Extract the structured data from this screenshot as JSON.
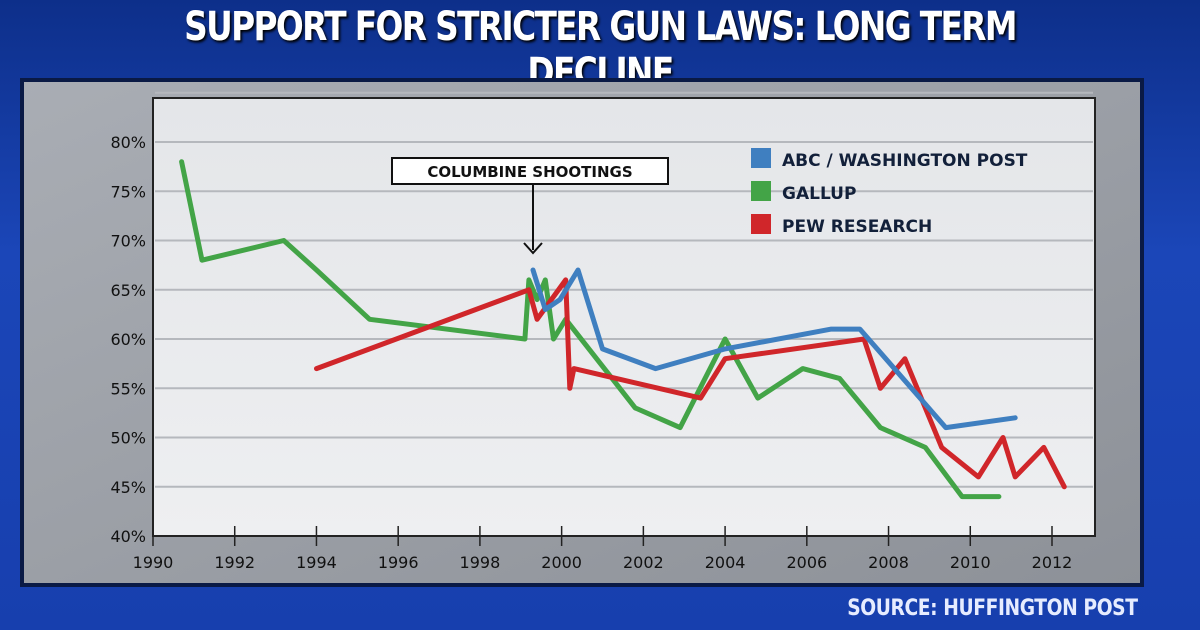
{
  "header": {
    "title": "SUPPORT FOR STRICTER GUN LAWS: LONG TERM DECLINE"
  },
  "footer": {
    "source": "SOURCE: HUFFINGTON POST"
  },
  "chart_data": {
    "type": "line",
    "title": "SUPPORT FOR STRICTER GUN LAWS: LONG TERM DECLINE",
    "xlabel": "",
    "ylabel": "",
    "xlim": [
      1990,
      2012.8
    ],
    "ylim": [
      40,
      80
    ],
    "x_ticks": [
      "1990",
      "1992",
      "1994",
      "1996",
      "1998",
      "2000",
      "2002",
      "2004",
      "2006",
      "2008",
      "2010",
      "2012"
    ],
    "y_ticks": [
      "40%",
      "45%",
      "50%",
      "55%",
      "60%",
      "65%",
      "70%",
      "75%",
      "80%"
    ],
    "grid": true,
    "legend_position": "top-right",
    "annotation": {
      "text": "COLUMBINE SHOOTINGS",
      "x": 1999.3
    },
    "series": [
      {
        "name": "ABC / WASHINGTON POST",
        "color": "#3f7fc0",
        "x": [
          1999.3,
          1999.6,
          1999.96,
          2000.4,
          2001.0,
          2002.3,
          2004.0,
          2006.6,
          2007.3,
          2009.4,
          2011.1
        ],
        "y": [
          67,
          63,
          64,
          67,
          59,
          57,
          59,
          61,
          61,
          51,
          52
        ]
      },
      {
        "name": "GALLUP",
        "color": "#43a447",
        "x": [
          1990.7,
          1991.2,
          1993.2,
          1994.0,
          1995.3,
          1999.1,
          1999.2,
          1999.4,
          1999.6,
          1999.8,
          2000.1,
          2001.8,
          2002.9,
          2004.0,
          2004.8,
          2005.9,
          2006.8,
          2007.8,
          2008.9,
          2009.8,
          2010.7
        ],
        "y": [
          78,
          68,
          70,
          67,
          62,
          60,
          66,
          64,
          66,
          60,
          62,
          53,
          51,
          60,
          54,
          57,
          56,
          51,
          49,
          44,
          44
        ]
      },
      {
        "name": "PEW RESEARCH",
        "color": "#d0262a",
        "x": [
          1994.0,
          1999.2,
          1999.4,
          2000.1,
          2000.2,
          2000.3,
          2003.4,
          2004.0,
          2007.4,
          2007.8,
          2008.4,
          2009.3,
          2010.2,
          2010.8,
          2011.1,
          2011.8,
          2012.3
        ],
        "y": [
          57,
          65,
          62,
          66,
          55,
          57,
          54,
          58,
          60,
          55,
          58,
          49,
          46,
          50,
          46,
          49,
          45
        ]
      }
    ]
  }
}
